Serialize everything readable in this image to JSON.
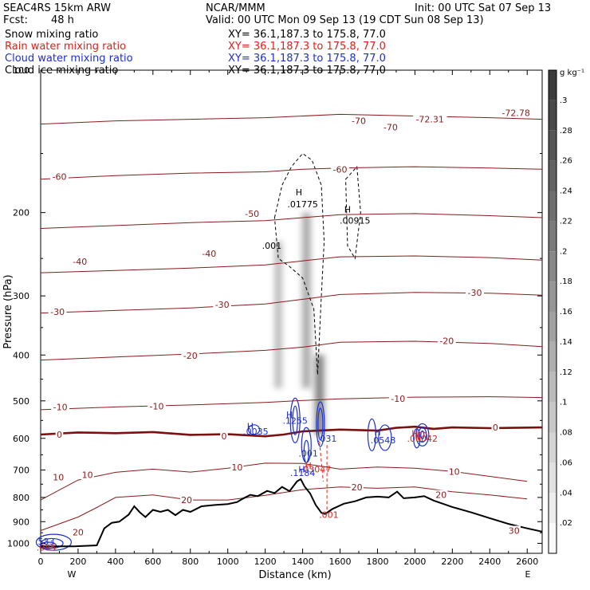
{
  "header": {
    "model": "SEAC4RS 15km ARW",
    "center": "NCAR/MMM",
    "init": "Init: 00 UTC Sat 07 Sep 13",
    "fcst_label": "Fcst:",
    "fcst_value": "48 h",
    "valid": "Valid: 00 UTC Mon 09 Sep 13 (19 CDT Sun 08 Sep 13)",
    "xy_prefix": "XY=",
    "xy_value": "36.1,187.3 to 175.8, 77.0",
    "xy_short": "XY=  36.1,187.3 to 175.8, 77.0"
  },
  "fields": [
    {
      "label": "Snow mixing ratio",
      "color": "#000000"
    },
    {
      "label": "Rain water mixing ratio",
      "color": "#e0201c"
    },
    {
      "label": "Cloud water mixing ratio",
      "color": "#1c2fd0"
    },
    {
      "label": "Cloud ice mixing ratio",
      "color": "#000000"
    }
  ],
  "colors": {
    "temperature": "#8b1a1a",
    "zero_isotherm": "#7a1010",
    "terrain": "#000000",
    "cloud_water": "#1c2fd0",
    "rain": "#e0201c",
    "ice": "#000000"
  },
  "chart_data": {
    "type": "cross-section",
    "xlabel": "Distance (km)",
    "ylabel": "Pressure (hPa)",
    "xlim": [
      0,
      2680
    ],
    "ylim": [
      1050,
      100
    ],
    "y_scale": "log",
    "x_ticks": [
      0,
      200,
      400,
      600,
      800,
      1000,
      1200,
      1400,
      1600,
      1800,
      2000,
      2200,
      2400,
      2600
    ],
    "y_ticks": [
      100,
      200,
      300,
      400,
      500,
      600,
      700,
      800,
      900,
      1000
    ],
    "x_end_labels": [
      "W",
      "E"
    ],
    "colorbar": {
      "unit": "g kg⁻¹",
      "ticks": [
        ".3",
        ".28",
        ".26",
        ".24",
        ".22",
        ".2",
        ".18",
        ".16",
        ".14",
        ".12",
        ".1",
        ".08",
        ".06",
        ".04",
        ".02"
      ]
    },
    "terrain_profile": [
      [
        0,
        1015
      ],
      [
        180,
        1015
      ],
      [
        300,
        1010
      ],
      [
        340,
        930
      ],
      [
        380,
        905
      ],
      [
        420,
        900
      ],
      [
        470,
        870
      ],
      [
        500,
        835
      ],
      [
        530,
        860
      ],
      [
        560,
        880
      ],
      [
        600,
        850
      ],
      [
        640,
        858
      ],
      [
        680,
        850
      ],
      [
        720,
        872
      ],
      [
        760,
        850
      ],
      [
        800,
        858
      ],
      [
        860,
        835
      ],
      [
        930,
        830
      ],
      [
        1000,
        826
      ],
      [
        1050,
        818
      ],
      [
        1080,
        805
      ],
      [
        1120,
        790
      ],
      [
        1160,
        795
      ],
      [
        1210,
        775
      ],
      [
        1250,
        783
      ],
      [
        1290,
        760
      ],
      [
        1330,
        776
      ],
      [
        1370,
        740
      ],
      [
        1390,
        732
      ],
      [
        1410,
        758
      ],
      [
        1440,
        785
      ],
      [
        1470,
        830
      ],
      [
        1500,
        862
      ],
      [
        1520,
        867
      ],
      [
        1560,
        846
      ],
      [
        1620,
        825
      ],
      [
        1680,
        815
      ],
      [
        1740,
        800
      ],
      [
        1800,
        797
      ],
      [
        1860,
        800
      ],
      [
        1905,
        778
      ],
      [
        1940,
        803
      ],
      [
        2000,
        800
      ],
      [
        2050,
        795
      ],
      [
        2100,
        812
      ],
      [
        2200,
        838
      ],
      [
        2300,
        860
      ],
      [
        2400,
        885
      ],
      [
        2500,
        910
      ],
      [
        2600,
        930
      ],
      [
        2680,
        945
      ]
    ],
    "temperature_contours": [
      {
        "value": 20,
        "points": [
          [
            0,
            940
          ],
          [
            200,
            880
          ],
          [
            300,
            840
          ],
          [
            400,
            800
          ],
          [
            600,
            790
          ],
          [
            800,
            810
          ],
          [
            1000,
            810
          ],
          [
            1200,
            792
          ],
          [
            1400,
            770
          ],
          [
            1600,
            760
          ],
          [
            1800,
            765
          ],
          [
            2000,
            760
          ],
          [
            2200,
            778
          ],
          [
            2400,
            790
          ],
          [
            2600,
            806
          ]
        ]
      },
      {
        "value": 10,
        "points": [
          [
            0,
            810
          ],
          [
            200,
            735
          ],
          [
            400,
            708
          ],
          [
            600,
            697
          ],
          [
            800,
            707
          ],
          [
            1000,
            694
          ],
          [
            1200,
            677
          ],
          [
            1400,
            678
          ],
          [
            1600,
            697
          ],
          [
            1800,
            690
          ],
          [
            2000,
            694
          ],
          [
            2200,
            705
          ],
          [
            2400,
            722
          ],
          [
            2600,
            740
          ]
        ]
      },
      {
        "value": 0,
        "points": [
          [
            0,
            589
          ],
          [
            200,
            583
          ],
          [
            400,
            585
          ],
          [
            600,
            582
          ],
          [
            800,
            590
          ],
          [
            1000,
            588
          ],
          [
            1200,
            594
          ],
          [
            1300,
            589
          ],
          [
            1400,
            580
          ],
          [
            1600,
            575
          ],
          [
            1800,
            578
          ],
          [
            1900,
            570
          ],
          [
            2000,
            567
          ],
          [
            2100,
            573
          ],
          [
            2200,
            569
          ],
          [
            2400,
            571
          ],
          [
            2680,
            569
          ]
        ]
      },
      {
        "value": -10,
        "points": [
          [
            0,
            522
          ],
          [
            400,
            515
          ],
          [
            800,
            510
          ],
          [
            1200,
            504
          ],
          [
            1400,
            499
          ],
          [
            1600,
            495
          ],
          [
            2000,
            491
          ],
          [
            2400,
            490
          ],
          [
            2680,
            492
          ]
        ]
      },
      {
        "value": -20,
        "points": [
          [
            0,
            410
          ],
          [
            400,
            404
          ],
          [
            800,
            398
          ],
          [
            1200,
            391
          ],
          [
            1400,
            385
          ],
          [
            1600,
            376
          ],
          [
            2000,
            374
          ],
          [
            2400,
            378
          ],
          [
            2680,
            384
          ]
        ]
      },
      {
        "value": -30,
        "points": [
          [
            0,
            326
          ],
          [
            400,
            322
          ],
          [
            800,
            318
          ],
          [
            1200,
            312
          ],
          [
            1400,
            305
          ],
          [
            1600,
            298
          ],
          [
            2000,
            295
          ],
          [
            2400,
            296
          ],
          [
            2680,
            299
          ]
        ]
      },
      {
        "value": -40,
        "points": [
          [
            0,
            268
          ],
          [
            400,
            265
          ],
          [
            800,
            262
          ],
          [
            1200,
            258
          ],
          [
            1400,
            253
          ],
          [
            1600,
            248
          ],
          [
            2000,
            247
          ],
          [
            2400,
            249
          ],
          [
            2680,
            252
          ]
        ]
      },
      {
        "value": -50,
        "points": [
          [
            0,
            216
          ],
          [
            400,
            213
          ],
          [
            800,
            210
          ],
          [
            1200,
            208
          ],
          [
            1400,
            205
          ],
          [
            1600,
            202
          ],
          [
            2000,
            201
          ],
          [
            2400,
            203
          ],
          [
            2680,
            205
          ]
        ]
      },
      {
        "value": -60,
        "points": [
          [
            0,
            170
          ],
          [
            400,
            167
          ],
          [
            800,
            165
          ],
          [
            1200,
            164
          ],
          [
            1400,
            162
          ],
          [
            1600,
            161
          ],
          [
            2000,
            160
          ],
          [
            2400,
            161
          ],
          [
            2680,
            162
          ]
        ]
      },
      {
        "value": -70,
        "points": [
          [
            0,
            130
          ],
          [
            400,
            128
          ],
          [
            800,
            127
          ],
          [
            1200,
            126
          ],
          [
            1400,
            125
          ],
          [
            1600,
            124
          ],
          [
            2000,
            125
          ],
          [
            2400,
            126
          ],
          [
            2680,
            127
          ]
        ]
      }
    ],
    "temperature_labels": [
      {
        "text": "-70",
        "x": 1700,
        "p": 128
      },
      {
        "text": "-70",
        "x": 1870,
        "p": 132
      },
      {
        "text": "-72.31",
        "x": 2080,
        "p": 127
      },
      {
        "text": "-72.78",
        "x": 2540,
        "p": 123
      },
      {
        "text": "-60",
        "x": 100,
        "p": 168
      },
      {
        "text": "-60",
        "x": 1600,
        "p": 162
      },
      {
        "text": "-50",
        "x": 1130,
        "p": 201
      },
      {
        "text": "-40",
        "x": 210,
        "p": 254
      },
      {
        "text": "-40",
        "x": 900,
        "p": 244
      },
      {
        "text": "-30",
        "x": 90,
        "p": 324
      },
      {
        "text": "-30",
        "x": 970,
        "p": 313
      },
      {
        "text": "-30",
        "x": 2320,
        "p": 295
      },
      {
        "text": "-20",
        "x": 800,
        "p": 401
      },
      {
        "text": "-20",
        "x": 2170,
        "p": 373
      },
      {
        "text": "-10",
        "x": 105,
        "p": 515
      },
      {
        "text": "-10",
        "x": 620,
        "p": 513
      },
      {
        "text": "-10",
        "x": 1910,
        "p": 495
      },
      {
        "text": "0",
        "x": 100,
        "p": 589
      },
      {
        "text": "0",
        "x": 980,
        "p": 593
      },
      {
        "text": "0",
        "x": 2430,
        "p": 569
      },
      {
        "text": "10",
        "x": 95,
        "p": 725
      },
      {
        "text": "10",
        "x": 250,
        "p": 717
      },
      {
        "text": "10",
        "x": 1050,
        "p": 690
      },
      {
        "text": "10",
        "x": 2210,
        "p": 706
      },
      {
        "text": "20",
        "x": 200,
        "p": 948
      },
      {
        "text": "20",
        "x": 780,
        "p": 810
      },
      {
        "text": "20",
        "x": 1690,
        "p": 761
      },
      {
        "text": "20",
        "x": 2140,
        "p": 790
      },
      {
        "text": "30",
        "x": 2530,
        "p": 940
      }
    ],
    "extrema_labels": [
      {
        "text": "H",
        "x": 1380,
        "p": 181,
        "color": "#000000"
      },
      {
        "text": ".01775",
        "x": 1400,
        "p": 192,
        "color": "#000000"
      },
      {
        "text": "H",
        "x": 1640,
        "p": 197,
        "color": "#000000"
      },
      {
        "text": ".00915",
        "x": 1680,
        "p": 208,
        "color": "#000000"
      },
      {
        "text": ".001",
        "x": 1235,
        "p": 235,
        "color": "#000000"
      },
      {
        "text": "H",
        "x": 1330,
        "p": 535,
        "color": "#1c2fd0"
      },
      {
        "text": ".1255",
        "x": 1360,
        "p": 550,
        "color": "#1c2fd0"
      },
      {
        "text": "H",
        "x": 1120,
        "p": 565,
        "color": "#1c2fd0"
      },
      {
        "text": ".0035",
        "x": 1150,
        "p": 580,
        "color": "#1c2fd0"
      },
      {
        "text": "H",
        "x": 1800,
        "p": 582,
        "color": "#1c2fd0"
      },
      {
        "text": ".0548",
        "x": 1830,
        "p": 605,
        "color": "#1c2fd0"
      },
      {
        "text": ".031",
        "x": 1530,
        "p": 600,
        "color": "#1c2fd0"
      },
      {
        "text": "H",
        "x": 2000,
        "p": 585,
        "color": "#e0201c"
      },
      {
        "text": ".00042",
        "x": 2040,
        "p": 600,
        "color": "#e0201c"
      },
      {
        "text": ".001",
        "x": 1430,
        "p": 645,
        "color": "#1c2fd0"
      },
      {
        "text": "H",
        "x": 1430,
        "p": 685,
        "color": "#e0201c"
      },
      {
        "text": ".03047",
        "x": 1470,
        "p": 697,
        "color": "#e0201c"
      },
      {
        "text": "H",
        "x": 1395,
        "p": 697,
        "color": "#1c2fd0"
      },
      {
        "text": ".1184",
        "x": 1400,
        "p": 710,
        "color": "#1c2fd0"
      },
      {
        "text": ".001",
        "x": 1540,
        "p": 870,
        "color": "#e0201c"
      },
      {
        "text": "533",
        "x": 30,
        "p": 990,
        "color": "#1c2fd0"
      },
      {
        "text": ".085",
        "x": 30,
        "p": 1020,
        "color": "#e0201c"
      }
    ],
    "snow_columns": [
      {
        "x": 1420,
        "p_top": 200,
        "p_bottom": 470,
        "width_km": 70,
        "intensity": 0.55
      },
      {
        "x": 1270,
        "p_top": 230,
        "p_bottom": 470,
        "width_km": 60,
        "intensity": 0.45
      },
      {
        "x": 1490,
        "p_top": 400,
        "p_bottom": 590,
        "width_km": 75,
        "intensity": 0.8
      }
    ]
  }
}
